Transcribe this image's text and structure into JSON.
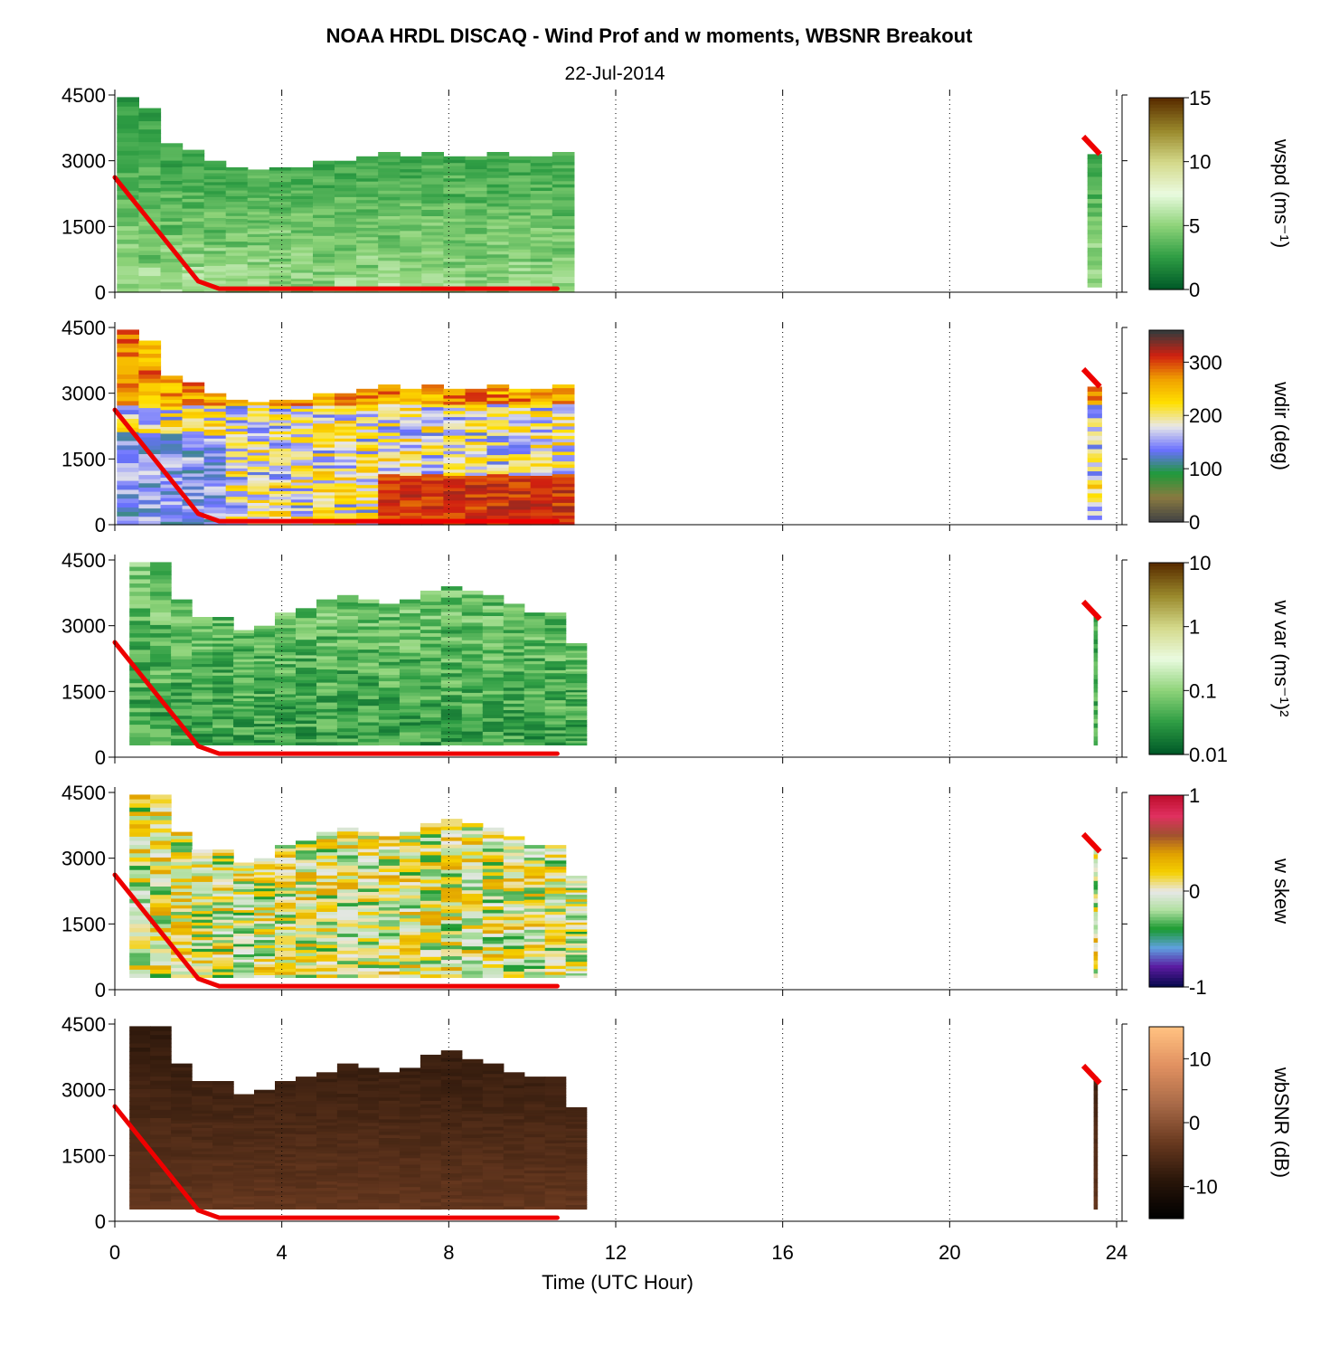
{
  "title": "NOAA HRDL DISCAQ - Wind Prof and w moments, WBSNR Breakout",
  "date": "22-Jul-2014",
  "x_axis": {
    "label": "Time (UTC Hour)",
    "range": [
      0,
      24
    ],
    "ticks": [
      0,
      4,
      8,
      12,
      16,
      20,
      24
    ],
    "tick_labels": [
      "0",
      "4",
      "8",
      "12",
      "16",
      "20",
      "24"
    ]
  },
  "y_axis": {
    "range": [
      0,
      4500
    ],
    "ticks": [
      0,
      1500,
      3000,
      4500
    ],
    "tick_labels": [
      "0",
      "1500",
      "3000",
      "4500"
    ]
  },
  "chart_data": [
    {
      "type": "heatmap",
      "id": "wspd",
      "colorbar": {
        "label": "wspd (ms⁻¹)",
        "range": [
          0,
          15
        ],
        "tick_labels": [
          "0",
          "5",
          "10",
          "15"
        ],
        "tick_values": [
          0,
          5,
          10,
          15
        ],
        "colors": [
          "#005a28",
          "#2f9e44",
          "#8fd47a",
          "#eafbe0",
          "#d4d98a",
          "#9a8a2c",
          "#5a2e00"
        ]
      },
      "boundary_layer_line": {
        "x": [
          0,
          2,
          2.5,
          10.6
        ],
        "y": [
          2620,
          250,
          80,
          80
        ],
        "x_late": [
          23.2,
          23.6
        ],
        "y_late": [
          3550,
          3150
        ],
        "color": "#ee0000"
      },
      "profiles": {
        "time_start": [
          0.05,
          23.3
        ],
        "time_end": [
          11.0,
          23.65
        ],
        "top_heights": [
          4450,
          4200,
          3400,
          3250,
          3000,
          2850,
          2800,
          2850,
          2850,
          3000,
          3000,
          3100,
          3200,
          3100,
          3200,
          3100,
          3100,
          3200,
          3100,
          3100,
          3200
        ],
        "late_top_height": 3150
      }
    },
    {
      "type": "heatmap",
      "id": "wdir",
      "colorbar": {
        "label": "wdir (deg)",
        "range": [
          0,
          360
        ],
        "tick_labels": [
          "0",
          "100",
          "200",
          "300"
        ],
        "tick_values": [
          0,
          100,
          200,
          300
        ],
        "colors": [
          "#444444",
          "#8a7a40",
          "#1f9a3a",
          "#6a70ff",
          "#e8e8e8",
          "#ffe000",
          "#f0a000",
          "#d02010",
          "#3a3a3a"
        ]
      },
      "boundary_layer_line": {
        "x": [
          0,
          2,
          2.5,
          10.6
        ],
        "y": [
          2620,
          250,
          80,
          80
        ],
        "x_late": [
          23.2,
          23.6
        ],
        "y_late": [
          3550,
          3150
        ],
        "color": "#ee0000"
      },
      "profiles": {
        "time_start": [
          0.05,
          23.3
        ],
        "time_end": [
          11.0,
          23.65
        ],
        "top_heights": [
          4450,
          4200,
          3400,
          3250,
          3000,
          2850,
          2800,
          2850,
          2850,
          3000,
          3000,
          3100,
          3200,
          3100,
          3200,
          3100,
          3100,
          3200,
          3100,
          3100,
          3200
        ],
        "late_top_height": 3150
      }
    },
    {
      "type": "heatmap",
      "id": "wvar",
      "colorbar": {
        "label": "w var (ms⁻¹)²",
        "range": [
          0.01,
          10
        ],
        "scale": "log",
        "tick_labels": [
          "0.01",
          "0.1",
          "1",
          "10"
        ],
        "tick_values": [
          0.01,
          0.1,
          1,
          10
        ],
        "colors": [
          "#005a28",
          "#2f9e44",
          "#8fd47a",
          "#eafbe0",
          "#d4d98a",
          "#9a8a2c",
          "#5a2e00"
        ]
      },
      "boundary_layer_line": {
        "x": [
          0,
          2,
          2.5,
          10.6
        ],
        "y": [
          2620,
          250,
          80,
          80
        ],
        "x_late": [
          23.2,
          23.6
        ],
        "y_late": [
          3550,
          3150
        ],
        "color": "#ee0000"
      },
      "profiles": {
        "time_start": [
          0.35,
          23.45
        ],
        "time_end": [
          11.3,
          23.55
        ],
        "top_heights": [
          4450,
          4450,
          3600,
          3200,
          3200,
          2900,
          3000,
          3300,
          3400,
          3600,
          3700,
          3600,
          3500,
          3600,
          3800,
          3900,
          3800,
          3700,
          3500,
          3300,
          3300,
          2600
        ],
        "late_top_height": 3300
      }
    },
    {
      "type": "heatmap",
      "id": "wskew",
      "colorbar": {
        "label": "w skew",
        "range": [
          -1,
          1
        ],
        "tick_labels": [
          "-1",
          "0",
          "1"
        ],
        "tick_values": [
          -1,
          0,
          1
        ],
        "colors": [
          "#0a0a50",
          "#5a1aa0",
          "#60a0e0",
          "#1a9a30",
          "#b0e0a0",
          "#e8e8e8",
          "#f5d000",
          "#e0a000",
          "#a05030",
          "#e03060",
          "#c01030"
        ]
      },
      "boundary_layer_line": {
        "x": [
          0,
          2,
          2.5,
          10.6
        ],
        "y": [
          2620,
          250,
          80,
          80
        ],
        "x_late": [
          23.2,
          23.6
        ],
        "y_late": [
          3550,
          3150
        ],
        "color": "#ee0000"
      },
      "profiles": {
        "time_start": [
          0.35,
          23.45
        ],
        "time_end": [
          11.3,
          23.55
        ],
        "top_heights": [
          4450,
          4450,
          3600,
          3200,
          3200,
          2900,
          3000,
          3300,
          3400,
          3600,
          3700,
          3600,
          3500,
          3600,
          3800,
          3900,
          3800,
          3700,
          3500,
          3300,
          3300,
          2600
        ],
        "late_top_height": 3300
      }
    },
    {
      "type": "heatmap",
      "id": "wbsnr",
      "colorbar": {
        "label": "wbSNR (dB)",
        "range": [
          -15,
          15
        ],
        "tick_labels": [
          "-10",
          "0",
          "10"
        ],
        "tick_values": [
          -10,
          0,
          10
        ],
        "colors": [
          "#000000",
          "#2a160a",
          "#6a3a20",
          "#a86a48",
          "#e09060",
          "#ffc080"
        ]
      },
      "boundary_layer_line": {
        "x": [
          0,
          2,
          2.5,
          10.6
        ],
        "y": [
          2620,
          250,
          80,
          80
        ],
        "x_late": [
          23.2,
          23.6
        ],
        "y_late": [
          3550,
          3150
        ],
        "color": "#ee0000"
      },
      "profiles": {
        "time_start": [
          0.35,
          23.45
        ],
        "time_end": [
          11.3,
          23.55
        ],
        "top_heights": [
          4450,
          4450,
          3600,
          3200,
          3200,
          2900,
          3000,
          3200,
          3300,
          3400,
          3600,
          3500,
          3400,
          3500,
          3800,
          3900,
          3700,
          3600,
          3400,
          3300,
          3300,
          2600
        ],
        "late_top_height": 3300
      }
    }
  ]
}
